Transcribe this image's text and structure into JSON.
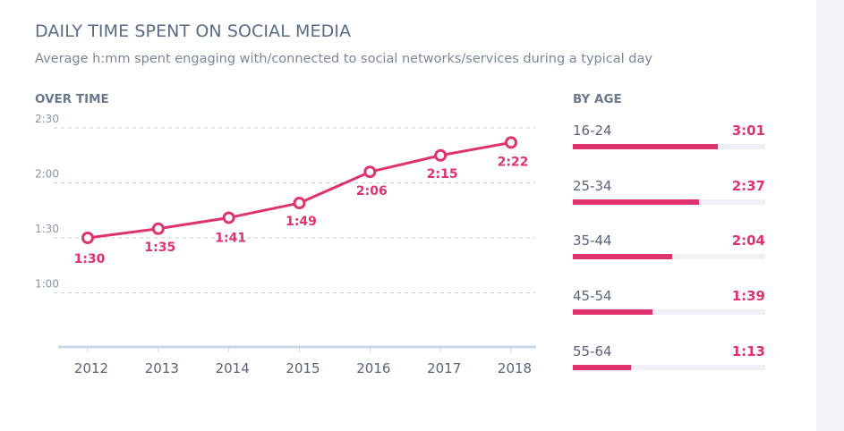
{
  "title": "DAILY TIME SPENT ON SOCIAL MEDIA",
  "subtitle": "Average h:mm spent engaging with/connected to social networks/services during a typical day",
  "chart_data": [
    {
      "type": "line",
      "label": "OVER TIME",
      "x": [
        "2012",
        "2013",
        "2014",
        "2015",
        "2016",
        "2017",
        "2018"
      ],
      "values_minutes": [
        90,
        95,
        101,
        109,
        126,
        135,
        142
      ],
      "data_labels": [
        "1:30",
        "1:35",
        "1:41",
        "1:49",
        "2:06",
        "2:15",
        "2:22"
      ],
      "y_ticks_minutes": [
        60,
        90,
        120,
        150
      ],
      "y_tick_labels": [
        "1:00",
        "1:30",
        "2:00",
        "2:30"
      ],
      "ylim_minutes": [
        30,
        155
      ],
      "grid": true,
      "color": "#e0336e"
    },
    {
      "type": "bar",
      "label": "BY AGE",
      "categories": [
        "16-24",
        "25-34",
        "35-44",
        "45-54",
        "55-64"
      ],
      "values_minutes": [
        181,
        157,
        124,
        99,
        73
      ],
      "data_labels": [
        "3:01",
        "2:37",
        "2:04",
        "1:39",
        "1:13"
      ],
      "xlim_minutes": [
        0,
        240
      ],
      "color": "#e0336e"
    }
  ]
}
